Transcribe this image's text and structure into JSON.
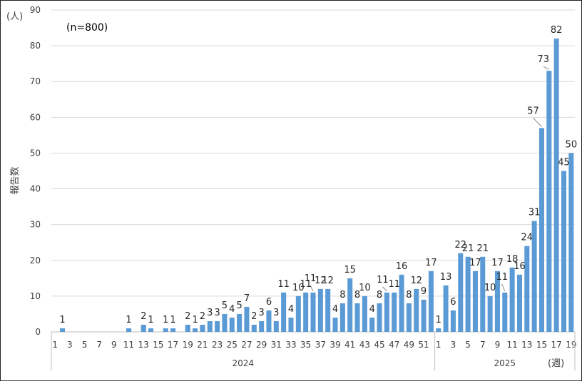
{
  "chart_data": {
    "type": "bar",
    "n_label": "(n=800)",
    "y_unit_label": "(人)",
    "ylabel": "報告数",
    "x_unit_label": "(週)",
    "ylim": [
      0,
      90
    ],
    "yticks": [
      0,
      10,
      20,
      30,
      40,
      50,
      60,
      70,
      80,
      90
    ],
    "grid": true,
    "bar_color": "#5B9BD5",
    "groups": [
      {
        "label": "2024",
        "weeks": [
          1,
          52
        ]
      },
      {
        "label": "2025",
        "weeks": [
          1,
          19
        ]
      }
    ],
    "categories": [
      "1",
      "2",
      "3",
      "4",
      "5",
      "6",
      "7",
      "8",
      "9",
      "10",
      "11",
      "12",
      "13",
      "14",
      "15",
      "16",
      "17",
      "18",
      "19",
      "20",
      "21",
      "22",
      "23",
      "24",
      "25",
      "26",
      "27",
      "28",
      "29",
      "30",
      "31",
      "32",
      "33",
      "34",
      "35",
      "36",
      "37",
      "38",
      "39",
      "40",
      "41",
      "42",
      "43",
      "44",
      "45",
      "46",
      "47",
      "48",
      "49",
      "50",
      "51",
      "52",
      "1",
      "2",
      "3",
      "4",
      "5",
      "6",
      "7",
      "8",
      "9",
      "10",
      "11",
      "12",
      "13",
      "14",
      "15",
      "16",
      "17",
      "18",
      "19"
    ],
    "values": [
      0,
      1,
      0,
      0,
      0,
      0,
      0,
      0,
      0,
      0,
      1,
      0,
      2,
      1,
      0,
      1,
      1,
      0,
      2,
      1,
      2,
      3,
      3,
      5,
      4,
      5,
      7,
      2,
      3,
      6,
      3,
      11,
      4,
      10,
      11,
      11,
      12,
      12,
      4,
      8,
      15,
      8,
      10,
      4,
      8,
      11,
      11,
      16,
      8,
      12,
      9,
      17,
      1,
      13,
      6,
      22,
      21,
      17,
      21,
      10,
      17,
      11,
      18,
      16,
      24,
      31,
      57,
      73,
      82,
      45,
      50
    ],
    "value_labels": [
      "",
      "1",
      "",
      "",
      "",
      "",
      "",
      "",
      "",
      "",
      "1",
      "",
      "2",
      "1",
      "",
      "1",
      "1",
      "",
      "2",
      "1",
      "2",
      "3",
      "3",
      "5",
      "4",
      "5",
      "7",
      "2",
      "3",
      "6",
      "3",
      "11",
      "4",
      "10",
      "11",
      "11",
      "12",
      "12",
      "4",
      "8",
      "15",
      "8",
      "10",
      "4",
      "8",
      "11",
      "11",
      "16",
      "8",
      "12",
      "9",
      "17",
      "1",
      "13",
      "6",
      "22",
      "21",
      "17",
      "21",
      "10",
      "17",
      "11",
      "18",
      "16",
      "24",
      "31",
      "57",
      "73",
      "82",
      "45",
      "50"
    ],
    "x_tick_labels": [
      {
        "i": 0,
        "t": "1"
      },
      {
        "i": 2,
        "t": "3"
      },
      {
        "i": 4,
        "t": "5"
      },
      {
        "i": 6,
        "t": "7"
      },
      {
        "i": 8,
        "t": "9"
      },
      {
        "i": 10,
        "t": "11"
      },
      {
        "i": 12,
        "t": "13"
      },
      {
        "i": 14,
        "t": "15"
      },
      {
        "i": 16,
        "t": "17"
      },
      {
        "i": 18,
        "t": "19"
      },
      {
        "i": 20,
        "t": "21"
      },
      {
        "i": 22,
        "t": "23"
      },
      {
        "i": 24,
        "t": "25"
      },
      {
        "i": 26,
        "t": "27"
      },
      {
        "i": 28,
        "t": "29"
      },
      {
        "i": 30,
        "t": "31"
      },
      {
        "i": 32,
        "t": "33"
      },
      {
        "i": 34,
        "t": "35"
      },
      {
        "i": 36,
        "t": "37"
      },
      {
        "i": 38,
        "t": "39"
      },
      {
        "i": 40,
        "t": "41"
      },
      {
        "i": 42,
        "t": "43"
      },
      {
        "i": 44,
        "t": "45"
      },
      {
        "i": 46,
        "t": "47"
      },
      {
        "i": 48,
        "t": "49"
      },
      {
        "i": 50,
        "t": "51"
      },
      {
        "i": 52,
        "t": "1"
      },
      {
        "i": 54,
        "t": "3"
      },
      {
        "i": 56,
        "t": "5"
      },
      {
        "i": 58,
        "t": "7"
      },
      {
        "i": 60,
        "t": "9"
      },
      {
        "i": 62,
        "t": "11"
      },
      {
        "i": 64,
        "t": "13"
      },
      {
        "i": 66,
        "t": "15"
      },
      {
        "i": 68,
        "t": "17"
      },
      {
        "i": 70,
        "t": "19"
      }
    ]
  }
}
